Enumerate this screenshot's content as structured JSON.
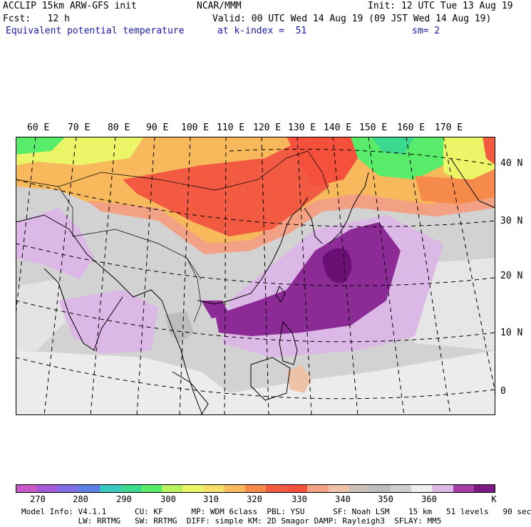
{
  "header": {
    "line1_left": "ACCLIP 15km ARW-GFS init",
    "line1_center": "NCAR/MMM",
    "line1_right": "Init: 12 UTC Tue 13 Aug 19",
    "line2_left": "Fcst:   12 h",
    "line2_right": "Valid: 00 UTC Wed 14 Aug 19 (09 JST Wed 14 Aug 19)",
    "line3_left": "Equivalent potential temperature",
    "line3_center": "at k-index =  51",
    "line3_right": "sm= 2"
  },
  "map": {
    "longitude_labels": [
      "60 E",
      "70 E",
      "80 E",
      "90 E",
      "100 E",
      "110 E",
      "120 E",
      "130 E",
      "140 E",
      "150 E",
      "160 E",
      "170 E"
    ],
    "latitude_labels": [
      "40 N",
      "30 N",
      "20 N",
      "10 N",
      "0"
    ]
  },
  "colorbar": {
    "colors": [
      "#c857c8",
      "#a35ad8",
      "#7f6fe4",
      "#5f7fe8",
      "#36c9c0",
      "#3bd890",
      "#59ec6a",
      "#b8f25e",
      "#ecf468",
      "#f6de6a",
      "#f7b95c",
      "#f58a4a",
      "#f25a42",
      "#f4503c",
      "#f2a184",
      "#eec2a6",
      "#c9c0b8",
      "#bdbdbd",
      "#cfcfcf",
      "#efefef",
      "#dcb8e6",
      "#a43ea6",
      "#7a1a82"
    ],
    "labels": [
      "270",
      "280",
      "290",
      "300",
      "310",
      "320",
      "330",
      "340",
      "350",
      "360",
      "K"
    ]
  },
  "footer": {
    "line1": "Model Info: V4.1.1      CU: KF      MP: WDM 6class  PBL: YSU      SF: Noah LSM    15 km   51 levels   90 sec",
    "line2": "            LW: RRTMG   SW: RRTMG  DIFF: simple KM: 2D Smagor DAMP: Rayleigh3  SFLAY: MM5"
  }
}
